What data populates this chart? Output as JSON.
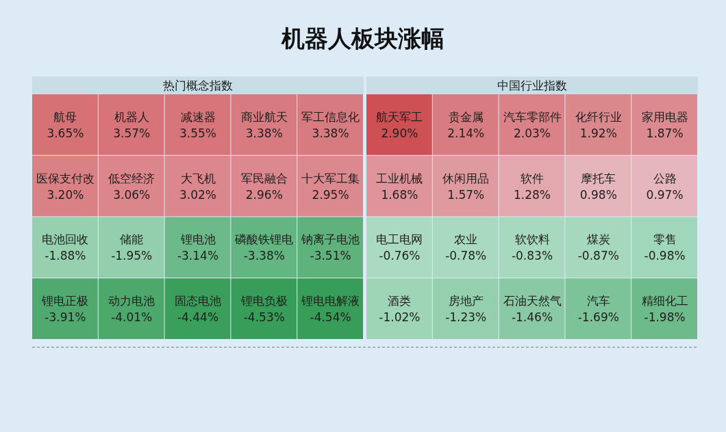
{
  "chart_data": [
    {
      "type": "other",
      "title": "机器人板块涨幅",
      "subtitle": "热门概念指数",
      "categories": [
        "航母",
        "机器人",
        "减速器",
        "商业航天",
        "军工信息化",
        "医保支付改",
        "低空经济",
        "大飞机",
        "军民融合",
        "十大军工集",
        "电池回收",
        "储能",
        "锂电池",
        "磷酸铁锂电",
        "钠离子电池",
        "锂电正极",
        "动力电池",
        "固态电池",
        "锂电负极",
        "锂电电解液"
      ],
      "values": [
        3.65,
        3.57,
        3.55,
        3.38,
        3.38,
        3.2,
        3.06,
        3.02,
        2.96,
        2.95,
        -1.88,
        -1.95,
        -3.14,
        -3.38,
        -3.51,
        -3.91,
        -4.01,
        -4.44,
        -4.53,
        -4.54
      ],
      "value_labels": [
        "3.65%",
        "3.57%",
        "3.55%",
        "3.38%",
        "3.38%",
        "3.20%",
        "3.06%",
        "3.02%",
        "2.96%",
        "2.95%",
        "-1.88%",
        "-1.95%",
        "-3.14%",
        "-3.38%",
        "-3.51%",
        "-3.91%",
        "-4.01%",
        "-4.44%",
        "-4.53%",
        "-4.54%"
      ]
    },
    {
      "type": "other",
      "subtitle": "中国行业指数",
      "categories": [
        "航天军工",
        "贵金属",
        "汽车零部件",
        "化纤行业",
        "家用电器",
        "工业机械",
        "休闲用品",
        "软件",
        "摩托车",
        "公路",
        "电工电网",
        "农业",
        "软饮料",
        "煤炭",
        "零售",
        "酒类",
        "房地产",
        "石油天然气",
        "汽车",
        "精细化工"
      ],
      "values": [
        2.9,
        2.14,
        2.03,
        1.92,
        1.87,
        1.68,
        1.57,
        1.28,
        0.98,
        0.97,
        -0.76,
        -0.78,
        -0.83,
        -0.87,
        -0.98,
        -1.02,
        -1.23,
        -1.46,
        -1.69,
        -1.98
      ],
      "value_labels": [
        "2.90%",
        "2.14%",
        "2.03%",
        "1.92%",
        "1.87%",
        "1.68%",
        "1.57%",
        "1.28%",
        "0.98%",
        "0.97%",
        "-0.76%",
        "-0.78%",
        "-0.83%",
        "-0.87%",
        "-0.98%",
        "-1.02%",
        "-1.23%",
        "-1.46%",
        "-1.69%",
        "-1.98%"
      ]
    }
  ]
}
